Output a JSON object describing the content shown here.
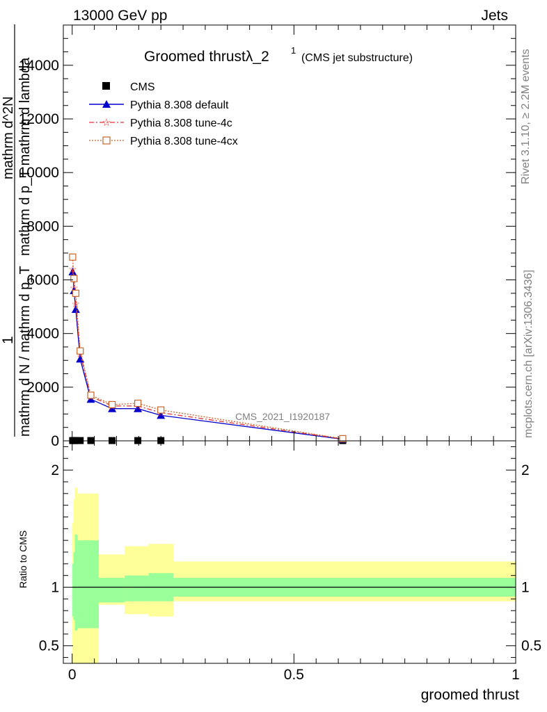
{
  "header": {
    "left": "13000 GeV pp",
    "right": "Jets"
  },
  "side_labels": {
    "rivet": "Rivet 3.1.10, ≥ 2.2M events",
    "mcplots": "mcplots.cern.ch [arXiv:1306.3436]"
  },
  "title": {
    "main": "Groomed thrustλ_2",
    "sup": "1",
    "sub": "(CMS jet substructure)"
  },
  "watermark": "CMS_2021_I1920187",
  "ylabel": {
    "one": "1",
    "num": "mathrm d^2N",
    "den": "mathrm d N / mathrm d p_T mathrm d p_T mathrm d lambda",
    "num_b": "mathrm d",
    "den_b": "mathrm d",
    "one_full": "1"
  },
  "ylabel_lines": [
    "mathrm d^2N",
    "mathrm d p_T mathrm d lambda",
    "mathrm d N / mathrm d p_T"
  ],
  "ratio_ylabel": "Ratio to CMS",
  "xlabel": "groomed thrust",
  "colors": {
    "cms": "#000000",
    "default": "#0000cc",
    "tune4c": "#e03030",
    "tune4cx": "#c86428",
    "band_inner": "#99ff99",
    "band_outer": "#ffff99"
  },
  "chart_data": [
    {
      "type": "line",
      "panel": "main",
      "xlim": [
        -0.02,
        1.0
      ],
      "ylim": [
        0,
        15500
      ],
      "x_ticks": [
        0,
        0.5,
        1
      ],
      "y_ticks": [
        0,
        2000,
        4000,
        6000,
        8000,
        10000,
        12000,
        14000
      ],
      "y_tick_labels": [
        "0",
        "2000",
        "4000",
        "6000",
        "8000",
        "10000",
        "12000",
        "14000"
      ],
      "series": [
        {
          "name": "CMS",
          "marker": "square",
          "x": [
            0.001,
            0.004,
            0.008,
            0.018,
            0.042,
            0.09,
            0.148,
            0.2,
            0.61
          ],
          "y": [
            10,
            10,
            10,
            10,
            10,
            10,
            10,
            10,
            10
          ]
        },
        {
          "name": "Pythia 8.308 default",
          "marker": "triangle",
          "x": [
            0.001,
            0.004,
            0.008,
            0.018,
            0.042,
            0.09,
            0.148,
            0.2,
            0.61
          ],
          "y": [
            6300,
            5600,
            4900,
            3050,
            1550,
            1200,
            1200,
            950,
            60
          ]
        },
        {
          "name": "Pythia 8.308 tune-4c",
          "marker": "star",
          "x": [
            0.001,
            0.004,
            0.008,
            0.018,
            0.042,
            0.09,
            0.148,
            0.2,
            0.61
          ],
          "y": [
            6400,
            5700,
            5100,
            3250,
            1650,
            1300,
            1300,
            1050,
            70
          ]
        },
        {
          "name": "Pythia 8.308 tune-4cx",
          "marker": "open-square",
          "x": [
            0.001,
            0.004,
            0.008,
            0.018,
            0.042,
            0.09,
            0.148,
            0.2,
            0.61
          ],
          "y": [
            6850,
            6050,
            5500,
            3350,
            1700,
            1350,
            1400,
            1150,
            80
          ]
        }
      ]
    },
    {
      "type": "area",
      "panel": "ratio",
      "ylabel": "Ratio to CMS",
      "xlabel": "groomed thrust",
      "xlim": [
        -0.02,
        1.0
      ],
      "ylim": [
        0.35,
        2.25
      ],
      "x_ticks": [
        0,
        0.5,
        1
      ],
      "y_ticks": [
        0.5,
        1,
        2
      ],
      "bins": [
        0,
        0.003,
        0.006,
        0.012,
        0.06,
        0.118,
        0.172,
        0.228,
        1.0
      ],
      "inner_lo": [
        0.75,
        0.72,
        0.63,
        0.65,
        0.87,
        0.88,
        0.88,
        0.92
      ],
      "inner_hi": [
        1.2,
        1.3,
        1.45,
        1.4,
        1.08,
        1.1,
        1.12,
        1.08
      ],
      "outer_lo": [
        0.35,
        0.35,
        0.35,
        0.35,
        0.85,
        0.77,
        0.75,
        0.88
      ],
      "outer_hi": [
        1.55,
        1.75,
        1.85,
        1.8,
        1.28,
        1.35,
        1.37,
        1.22
      ]
    }
  ]
}
